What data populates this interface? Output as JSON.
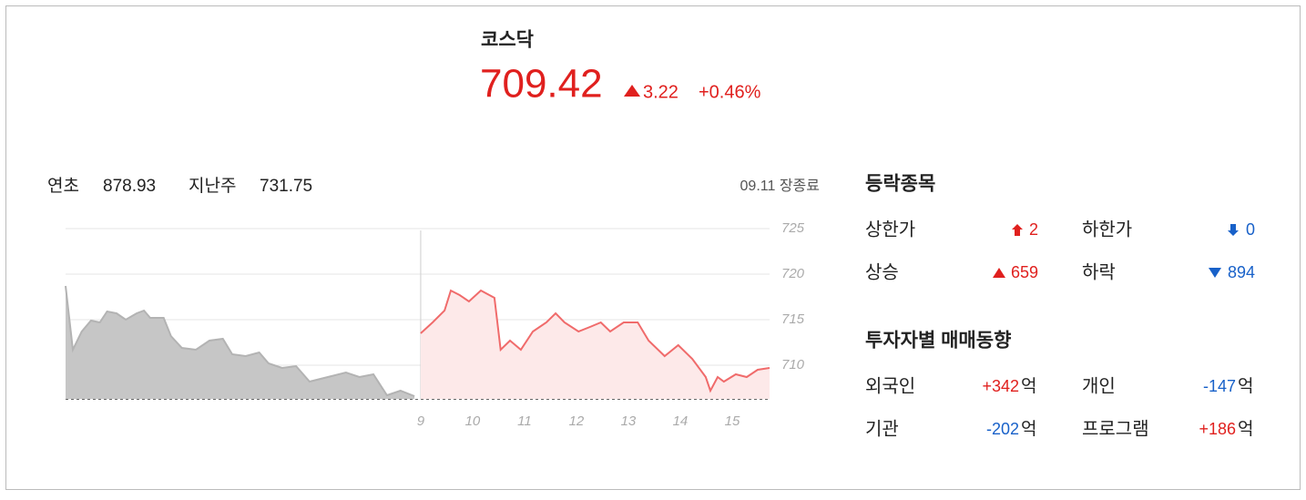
{
  "header": {
    "name": "코스닥",
    "price": "709.42",
    "change": "3.22",
    "change_pct": "+0.46%"
  },
  "summary": {
    "ytd_label": "연초",
    "ytd": "878.93",
    "last_week_label": "지난주",
    "last_week": "731.75",
    "status": "09.11 장종료"
  },
  "breadth": {
    "title": "등락종목",
    "upper_limit_label": "상한가",
    "upper_limit": "2",
    "lower_limit_label": "하한가",
    "lower_limit": "0",
    "advance_label": "상승",
    "advance": "659",
    "decline_label": "하락",
    "decline": "894"
  },
  "investors": {
    "title": "투자자별 매매동향",
    "unit": "억",
    "foreign_label": "외국인",
    "foreign": "+342",
    "individual_label": "개인",
    "individual": "-147",
    "institution_label": "기관",
    "institution": "-202",
    "program_label": "프로그램",
    "program": "+186"
  },
  "chart_data": {
    "type": "line",
    "xlim": [
      2.16,
      15.72
    ],
    "xticks": [
      9,
      10,
      11,
      12,
      13,
      14,
      15
    ],
    "ylim": [
      706.3,
      725.2
    ],
    "yticks": [
      710,
      715,
      720,
      725
    ],
    "grid": true,
    "series": [
      {
        "color": "#b3b3b3",
        "area_color": "#c6c6c6",
        "x": [
          2.16,
          2.3,
          2.47,
          2.65,
          2.82,
          2.96,
          3.14,
          3.32,
          3.53,
          3.67,
          3.79,
          4.05,
          4.19,
          4.4,
          4.67,
          4.93,
          5.19,
          5.37,
          5.63,
          5.89,
          6.07,
          6.33,
          6.6,
          6.86,
          7.21,
          7.56,
          7.82,
          8.09,
          8.35,
          8.61,
          8.88
        ],
        "values": [
          718.7,
          711.7,
          713.7,
          714.9,
          714.7,
          715.9,
          715.7,
          715.0,
          715.7,
          716.0,
          715.2,
          715.2,
          713.2,
          711.9,
          711.7,
          712.7,
          712.9,
          711.2,
          711.0,
          711.4,
          710.2,
          709.7,
          709.9,
          708.2,
          708.7,
          709.2,
          708.7,
          709.0,
          706.7,
          707.2,
          706.6
        ]
      },
      {
        "color": "#f06b6b",
        "area_color": "#fde9e9",
        "x": [
          9.0,
          9.23,
          9.46,
          9.58,
          9.75,
          9.93,
          10.16,
          10.42,
          10.54,
          10.72,
          10.93,
          11.16,
          11.42,
          11.6,
          11.77,
          12.04,
          12.26,
          12.47,
          12.65,
          12.91,
          13.18,
          13.39,
          13.7,
          13.96,
          14.23,
          14.49,
          14.58,
          14.72,
          14.84,
          15.07,
          15.28,
          15.49,
          15.72
        ],
        "values": [
          713.5,
          714.7,
          716.0,
          718.2,
          717.7,
          717.0,
          718.2,
          717.4,
          711.7,
          712.7,
          711.7,
          713.7,
          714.7,
          715.7,
          714.7,
          713.7,
          714.2,
          714.7,
          713.7,
          714.7,
          714.7,
          712.7,
          711.0,
          712.2,
          710.7,
          708.7,
          707.2,
          708.7,
          708.2,
          709.0,
          708.7,
          709.5,
          709.7
        ]
      }
    ]
  }
}
